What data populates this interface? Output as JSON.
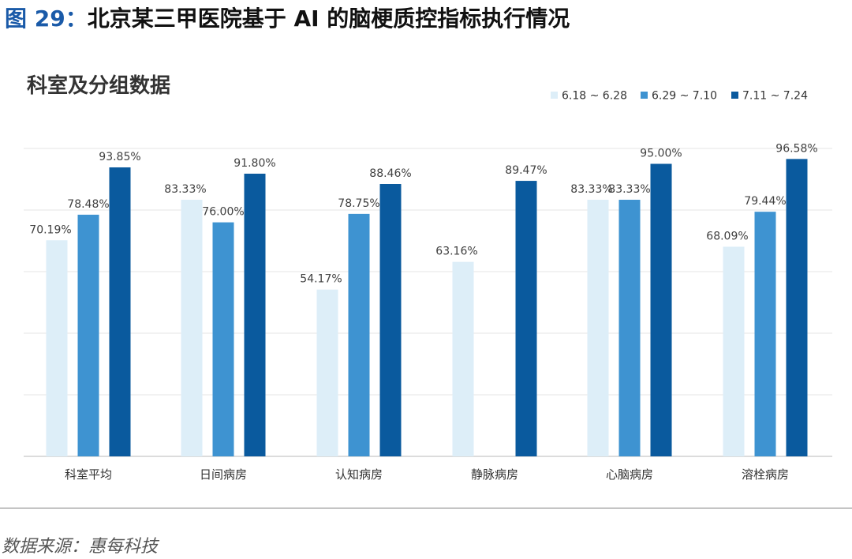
{
  "figure": {
    "prefix": "图 29：",
    "title": "北京某三甲医院基于 AI 的脑梗质控指标执行情况"
  },
  "source": "数据来源：惠每科技",
  "colors": {
    "series": [
      "#ddeef8",
      "#3e93d1",
      "#0a5a9e"
    ],
    "grid": "#e6e6e6",
    "axis": "#d0d0d0"
  },
  "chart_data": {
    "type": "bar",
    "title": "科室及分组数据",
    "categories": [
      "科室平均",
      "日间病房",
      "认知病房",
      "静脉病房",
      "心脑病房",
      "溶栓病房"
    ],
    "series": [
      {
        "name": "6.18 ~ 6.28",
        "values": [
          70.19,
          83.33,
          54.17,
          63.16,
          83.33,
          68.09
        ]
      },
      {
        "name": "6.29 ~ 7.10",
        "values": [
          78.48,
          76.0,
          78.75,
          null,
          83.33,
          79.44
        ]
      },
      {
        "name": "7.11 ~ 7.24",
        "values": [
          93.85,
          91.8,
          88.46,
          89.47,
          95.0,
          96.58
        ]
      }
    ],
    "ylim": [
      0,
      100
    ],
    "grid": true,
    "legend": "top-right",
    "value_suffix": "%"
  }
}
